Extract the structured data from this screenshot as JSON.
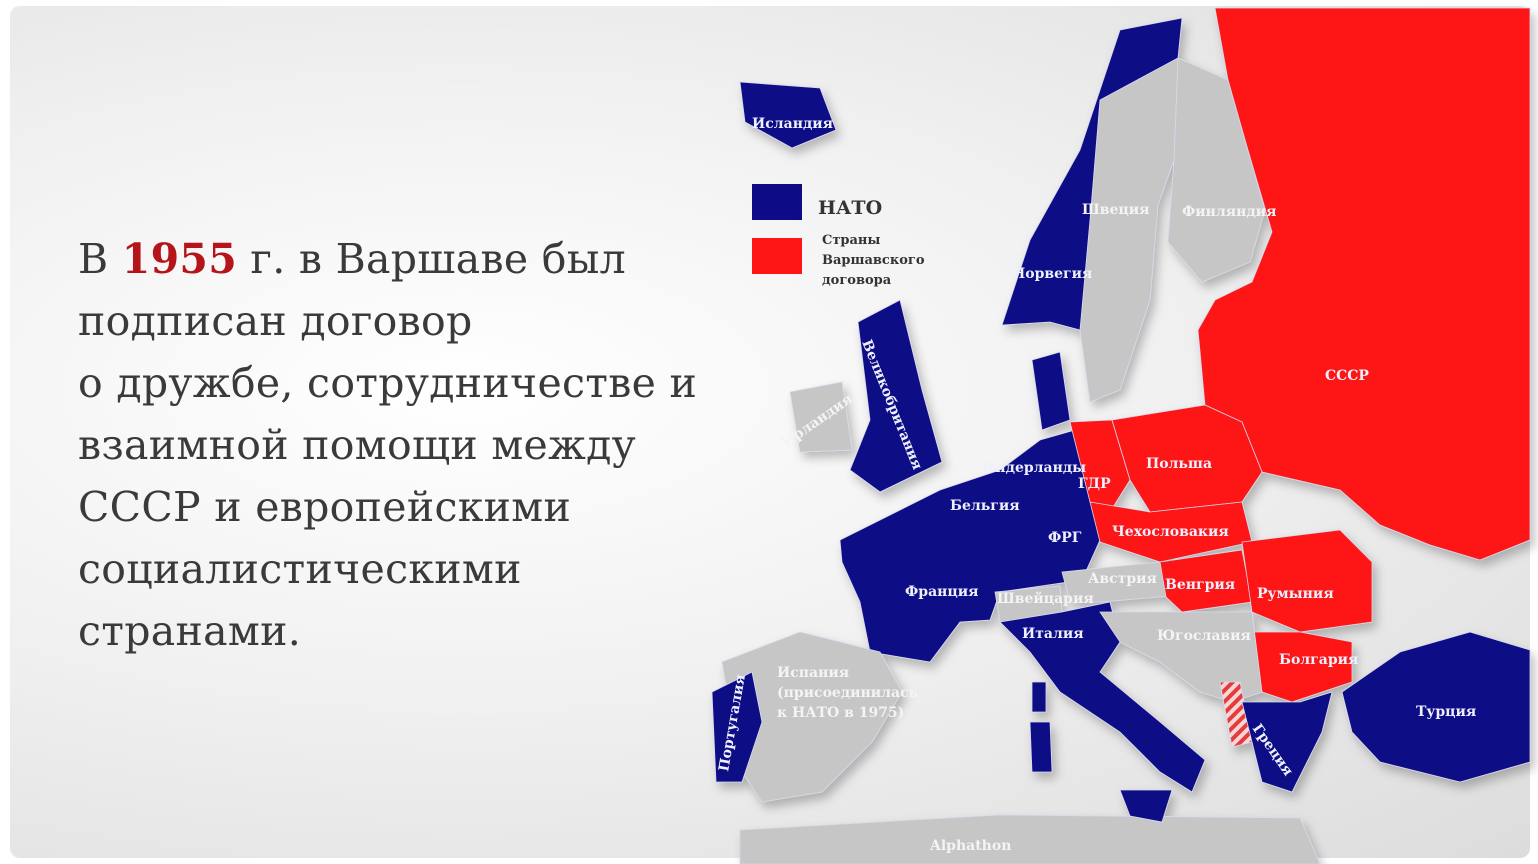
{
  "text": {
    "line1_prefix": "В ",
    "year": "1955",
    "line1_suffix": " г. в Варшаве был",
    "line2": "подписан договор",
    "line3": "о дружбе, сотрудничестве и",
    "line4": "взаимной помощи между",
    "line5": "СССР и европейскими",
    "line6": "социалистическими",
    "line7": "странами."
  },
  "legend": {
    "nato": "НАТО",
    "warsaw_line1": "Страны",
    "warsaw_line2": "Варшавского",
    "warsaw_line3": "договора"
  },
  "colors": {
    "nato": "#0d0c86",
    "warsaw": "#fe1616",
    "neutral": "#c6c6c6",
    "year": "#b5141a"
  },
  "countries": {
    "iceland": "Исландия",
    "norway": "Норвегия",
    "sweden": "Швеция",
    "finland": "Финляндия",
    "uk": "Великобритания",
    "ireland": "Ирландия",
    "netherlands": "Нидерланды",
    "belgium": "Бельгия",
    "frg": "ФРГ",
    "gdr": "ГДР",
    "poland": "Польша",
    "ussr": "СССР",
    "czechoslovakia": "Чехословакия",
    "austria": "Австрия",
    "switzerland": "Швейцария",
    "france": "Франция",
    "hungary": "Венгрия",
    "romania": "Румыния",
    "yugoslavia": "Югославия",
    "italy": "Италия",
    "bulgaria": "Болгария",
    "spain_line1": "Испания",
    "spain_line2": "(присоединилась",
    "spain_line3": "к НАТО в 1975)",
    "portugal": "Португалия",
    "greece": "Греция",
    "turkey": "Турция"
  },
  "watermark": "Alphathon"
}
